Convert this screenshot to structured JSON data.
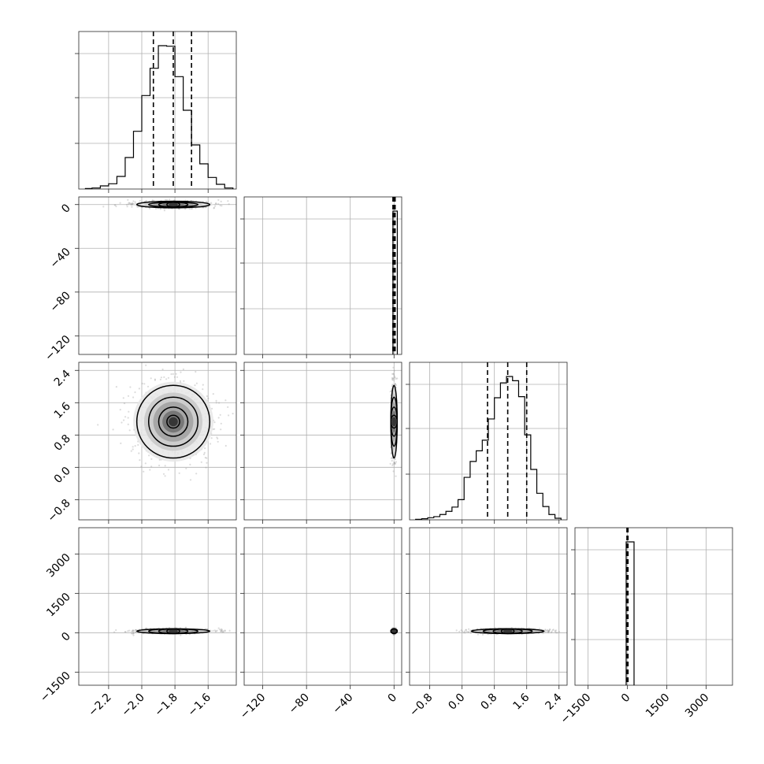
{
  "chart_data": {
    "type": "corner",
    "parameters": [
      "",
      "",
      "",
      ""
    ],
    "grid": true,
    "ticks": {
      "p0": [
        -2.2,
        -2.0,
        -1.8,
        -1.6
      ],
      "p1": [
        -120,
        -80,
        -40,
        0
      ],
      "p2": [
        -0.8,
        0.0,
        0.8,
        1.6,
        2.4
      ],
      "p3": [
        -1500,
        0,
        1500,
        3000
      ]
    },
    "ranges": {
      "p0": [
        -2.38,
        -1.43
      ],
      "p1": [
        -137,
        7
      ],
      "p2": [
        -1.3,
        2.6
      ],
      "p3": [
        -2000,
        4000
      ]
    },
    "quantiles": [
      0.16,
      0.5,
      0.84
    ],
    "quantile_values": {
      "p0": [
        -1.93,
        -1.81,
        -1.7
      ],
      "p2": [
        0.63,
        1.13,
        1.6
      ],
      "p1": [
        -1.0,
        0.0,
        1.0
      ],
      "p3": [
        -20,
        0,
        20
      ]
    },
    "histograms": {
      "p0": {
        "edges": [
          -2.34,
          -2.3,
          -2.25,
          -2.2,
          -2.15,
          -2.1,
          -2.05,
          -2.0,
          -1.95,
          -1.9,
          -1.85,
          -1.8,
          -1.75,
          -1.7,
          -1.65,
          -1.6,
          -1.55,
          -1.5,
          -1.45
        ],
        "counts": [
          1,
          2,
          6,
          10,
          24,
          60,
          110,
          178,
          230,
          273,
          272,
          214,
          150,
          84,
          48,
          22,
          9,
          2
        ]
      },
      "p2": {
        "edges": [
          -1.15,
          -1.0,
          -0.85,
          -0.7,
          -0.55,
          -0.4,
          -0.25,
          -0.1,
          0.05,
          0.2,
          0.35,
          0.5,
          0.65,
          0.8,
          0.95,
          1.1,
          1.25,
          1.4,
          1.55,
          1.7,
          1.85,
          2.0,
          2.15,
          2.3,
          2.45
        ],
        "counts": [
          1,
          2,
          4,
          6,
          10,
          16,
          24,
          38,
          80,
          110,
          130,
          150,
          190,
          230,
          258,
          270,
          262,
          232,
          160,
          95,
          50,
          25,
          10,
          3
        ]
      },
      "p1": {
        "edges": [
          -1.0,
          1.0,
          3.0
        ],
        "counts": [
          1000,
          1000
        ]
      },
      "p3": {
        "edges": [
          -50,
          25,
          250
        ],
        "counts": [
          1000,
          1000
        ]
      }
    },
    "pairs": [
      {
        "x": "p0",
        "y": "p1",
        "center": [
          -1.81,
          0
        ],
        "spread": [
          0.11,
          1.5
        ]
      },
      {
        "x": "p0",
        "y": "p2",
        "center": [
          -1.81,
          1.13
        ],
        "spread": [
          0.11,
          0.45
        ]
      },
      {
        "x": "p1",
        "y": "p2",
        "center": [
          0,
          1.13
        ],
        "spread": [
          0.9,
          0.45
        ]
      },
      {
        "x": "p0",
        "y": "p3",
        "center": [
          -1.81,
          60
        ],
        "spread": [
          0.11,
          40
        ]
      },
      {
        "x": "p1",
        "y": "p3",
        "center": [
          0,
          60
        ],
        "spread": [
          0.6,
          40
        ]
      },
      {
        "x": "p2",
        "y": "p3",
        "center": [
          1.13,
          60
        ],
        "spread": [
          0.45,
          40
        ]
      }
    ],
    "colors": {
      "line": "#000000",
      "grid": "#b0b0b0",
      "points": "#9a9a9a"
    }
  }
}
